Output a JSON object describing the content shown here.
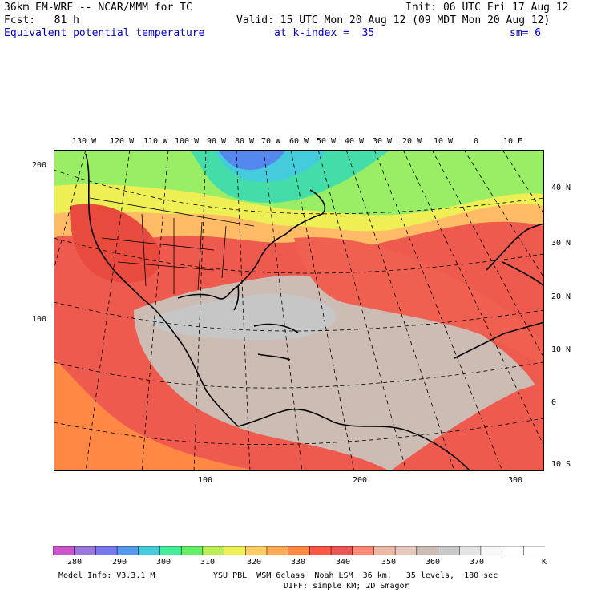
{
  "header": {
    "line1_left": "36km EM-WRF -- NCAR/MMM for TC",
    "line1_right": "Init: 06 UTC Fri 17 Aug 12",
    "line2_left": "Fcst:   81 h",
    "line2_right": "Valid: 15 UTC Mon 20 Aug 12 (09 MDT Mon 20 Aug 12)",
    "line3_field": "Equivalent potential temperature",
    "line3_level": "at k-index =  35",
    "line3_sm": "sm= 6"
  },
  "map": {
    "top_lon_labels": [
      "130 W",
      "120 W",
      "110 W",
      "100 W",
      "90 W",
      "80 W",
      "70 W",
      "60 W",
      "50 W",
      "40 W",
      "30 W",
      "20 W",
      "10 W",
      "0",
      "10 E"
    ],
    "right_lat_labels": [
      "40 N",
      "30 N",
      "20 N",
      "10 N",
      "0",
      "10 S"
    ],
    "left_grid_labels": [
      "200",
      "100"
    ],
    "bottom_grid_labels": [
      "100",
      "200",
      "300"
    ]
  },
  "colorbar": {
    "labels": [
      "280",
      "290",
      "300",
      "310",
      "320",
      "330",
      "340",
      "350",
      "360",
      "370"
    ],
    "unit": "K",
    "colors": [
      "#cc55cc",
      "#9977dd",
      "#7777ee",
      "#5599ee",
      "#44ccdd",
      "#44ee99",
      "#66ee66",
      "#bbee55",
      "#eeee55",
      "#ffcc66",
      "#ffaa55",
      "#ff8844",
      "#ff5544",
      "#ee5555",
      "#ff8877",
      "#eeb8a4",
      "#e8c8bc",
      "#cdbcb4",
      "#c8c8c8",
      "#e4e4e4",
      "#f8f8f8",
      "#ffffff",
      "#ffffff"
    ]
  },
  "footer": {
    "line1_left": "Model Info: V3.3.1 M",
    "line1_right": "YSU PBL  WSM 6class  Noah LSM  36 km,   35 levels,  180 sec",
    "line2": "DIFF: simple KM; 2D Smagor"
  }
}
